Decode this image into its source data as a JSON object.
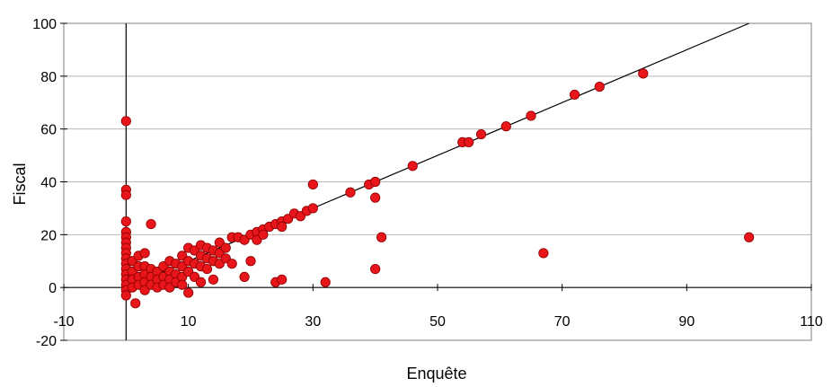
{
  "chart_data": {
    "type": "scatter",
    "title": "",
    "xlabel": "Enquête",
    "ylabel": "Fiscal",
    "xlim": [
      -10,
      110
    ],
    "ylim": [
      -20,
      100
    ],
    "x_ticks": [
      -10,
      10,
      30,
      50,
      70,
      90,
      110
    ],
    "y_ticks": [
      -20,
      0,
      20,
      40,
      60,
      80,
      100
    ],
    "gridlines": "horizontal",
    "legend": "none",
    "colors": {
      "marker": "#e8151b",
      "marker_edge": "#8b0000",
      "grid": "#b8b8b8",
      "line": "#000000"
    },
    "reference_line": {
      "x": [
        0,
        100
      ],
      "y": [
        0,
        100
      ]
    },
    "points": [
      [
        0,
        63
      ],
      [
        0,
        37
      ],
      [
        0,
        35
      ],
      [
        0,
        25
      ],
      [
        0,
        21
      ],
      [
        0,
        19
      ],
      [
        0,
        17
      ],
      [
        0,
        15
      ],
      [
        0,
        13
      ],
      [
        0,
        11
      ],
      [
        0,
        9
      ],
      [
        0,
        7
      ],
      [
        0,
        5
      ],
      [
        0,
        3
      ],
      [
        0,
        1
      ],
      [
        0,
        -1
      ],
      [
        0,
        -3
      ],
      [
        1,
        10
      ],
      [
        1,
        6
      ],
      [
        1,
        3
      ],
      [
        1,
        0
      ],
      [
        2,
        12
      ],
      [
        2,
        8
      ],
      [
        2,
        4
      ],
      [
        2,
        1
      ],
      [
        1.5,
        -6
      ],
      [
        3,
        13
      ],
      [
        3,
        8
      ],
      [
        3,
        5
      ],
      [
        3,
        2
      ],
      [
        3,
        -1
      ],
      [
        4,
        24
      ],
      [
        4,
        7
      ],
      [
        4,
        4
      ],
      [
        4,
        1
      ],
      [
        5,
        6
      ],
      [
        5,
        3
      ],
      [
        5,
        0
      ],
      [
        6,
        8
      ],
      [
        6,
        4
      ],
      [
        6,
        1
      ],
      [
        7,
        10
      ],
      [
        7,
        6
      ],
      [
        7,
        3
      ],
      [
        7,
        0
      ],
      [
        8,
        9
      ],
      [
        8,
        5
      ],
      [
        8,
        2
      ],
      [
        9,
        12
      ],
      [
        9,
        8
      ],
      [
        9,
        4
      ],
      [
        9,
        1
      ],
      [
        10,
        15
      ],
      [
        10,
        10
      ],
      [
        10,
        6
      ],
      [
        10,
        -2
      ],
      [
        11,
        14
      ],
      [
        11,
        9
      ],
      [
        11,
        4
      ],
      [
        12,
        16
      ],
      [
        12,
        12
      ],
      [
        12,
        8
      ],
      [
        12,
        2
      ],
      [
        13,
        15
      ],
      [
        13,
        11
      ],
      [
        13,
        7
      ],
      [
        14,
        14
      ],
      [
        14,
        10
      ],
      [
        14,
        3
      ],
      [
        15,
        17
      ],
      [
        15,
        13
      ],
      [
        15,
        9
      ],
      [
        16,
        15
      ],
      [
        16,
        11
      ],
      [
        17,
        19
      ],
      [
        17,
        9
      ],
      [
        18,
        19
      ],
      [
        19,
        18
      ],
      [
        19,
        4
      ],
      [
        20,
        20
      ],
      [
        20,
        10
      ],
      [
        21,
        21
      ],
      [
        21,
        18
      ],
      [
        22,
        22
      ],
      [
        22,
        20
      ],
      [
        23,
        23
      ],
      [
        24,
        24
      ],
      [
        24,
        2
      ],
      [
        25,
        25
      ],
      [
        25,
        23
      ],
      [
        25,
        3
      ],
      [
        26,
        26
      ],
      [
        27,
        28
      ],
      [
        28,
        27
      ],
      [
        29,
        29
      ],
      [
        30,
        39
      ],
      [
        30,
        30
      ],
      [
        32,
        2
      ],
      [
        36,
        36
      ],
      [
        39,
        39
      ],
      [
        40,
        40
      ],
      [
        40,
        34
      ],
      [
        40,
        7
      ],
      [
        41,
        19
      ],
      [
        46,
        46
      ],
      [
        54,
        55
      ],
      [
        55,
        55
      ],
      [
        57,
        58
      ],
      [
        61,
        61
      ],
      [
        65,
        65
      ],
      [
        67,
        13
      ],
      [
        72,
        73
      ],
      [
        76,
        76
      ],
      [
        83,
        81
      ],
      [
        100,
        19
      ]
    ]
  }
}
